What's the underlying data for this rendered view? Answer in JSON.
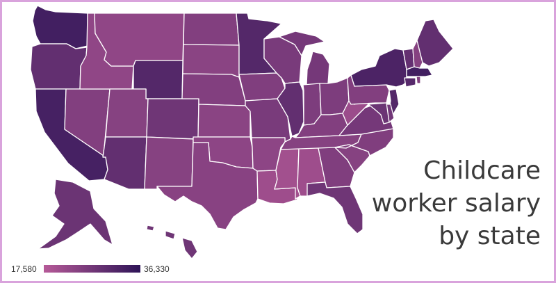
{
  "headline": {
    "line1": "Childcare",
    "line2": "worker salary",
    "line3": "by state"
  },
  "legend": {
    "min_label": "17,580",
    "max_label": "36,330",
    "color_low": "#b65a98",
    "color_high": "#2e1457"
  },
  "colors": {
    "frame_border": "#d9a3dc",
    "state_border": "#ffffff"
  },
  "map_data": {
    "type": "choropleth",
    "note_scale": "relative 0-1 between legend min and max",
    "states": [
      {
        "id": "WA",
        "level": 0.85
      },
      {
        "id": "OR",
        "level": 0.62
      },
      {
        "id": "CA",
        "level": 0.82
      },
      {
        "id": "NV",
        "level": 0.38
      },
      {
        "id": "ID",
        "level": 0.28
      },
      {
        "id": "MT",
        "level": 0.28
      },
      {
        "id": "WY",
        "level": 0.72
      },
      {
        "id": "UT",
        "level": 0.35
      },
      {
        "id": "AZ",
        "level": 0.62
      },
      {
        "id": "CO",
        "level": 0.52
      },
      {
        "id": "NM",
        "level": 0.35
      },
      {
        "id": "ND",
        "level": 0.38
      },
      {
        "id": "SD",
        "level": 0.32
      },
      {
        "id": "NE",
        "level": 0.38
      },
      {
        "id": "KS",
        "level": 0.32
      },
      {
        "id": "OK",
        "level": 0.3
      },
      {
        "id": "TX",
        "level": 0.34
      },
      {
        "id": "MN",
        "level": 0.72
      },
      {
        "id": "IA",
        "level": 0.4
      },
      {
        "id": "MO",
        "level": 0.45
      },
      {
        "id": "AR",
        "level": 0.3
      },
      {
        "id": "LA",
        "level": 0.18
      },
      {
        "id": "WI",
        "level": 0.45
      },
      {
        "id": "IL",
        "level": 0.62
      },
      {
        "id": "MI",
        "level": 0.48
      },
      {
        "id": "IN",
        "level": 0.42
      },
      {
        "id": "OH",
        "level": 0.42
      },
      {
        "id": "KY",
        "level": 0.38
      },
      {
        "id": "TN",
        "level": 0.35
      },
      {
        "id": "MS",
        "level": 0.15
      },
      {
        "id": "AL",
        "level": 0.18
      },
      {
        "id": "GA",
        "level": 0.4
      },
      {
        "id": "FL",
        "level": 0.52
      },
      {
        "id": "SC",
        "level": 0.35
      },
      {
        "id": "NC",
        "level": 0.4
      },
      {
        "id": "VA",
        "level": 0.48
      },
      {
        "id": "WV",
        "level": 0.2
      },
      {
        "id": "PA",
        "level": 0.38
      },
      {
        "id": "NY",
        "level": 0.78
      },
      {
        "id": "VT",
        "level": 0.6
      },
      {
        "id": "NH",
        "level": 0.35
      },
      {
        "id": "ME",
        "level": 0.62
      },
      {
        "id": "MA",
        "level": 0.85
      },
      {
        "id": "CT",
        "level": 0.7
      },
      {
        "id": "NJ",
        "level": 0.72
      },
      {
        "id": "DE",
        "level": 0.5
      },
      {
        "id": "MD",
        "level": 0.55
      },
      {
        "id": "AK",
        "level": 0.55
      },
      {
        "id": "HI",
        "level": 0.52
      }
    ]
  }
}
